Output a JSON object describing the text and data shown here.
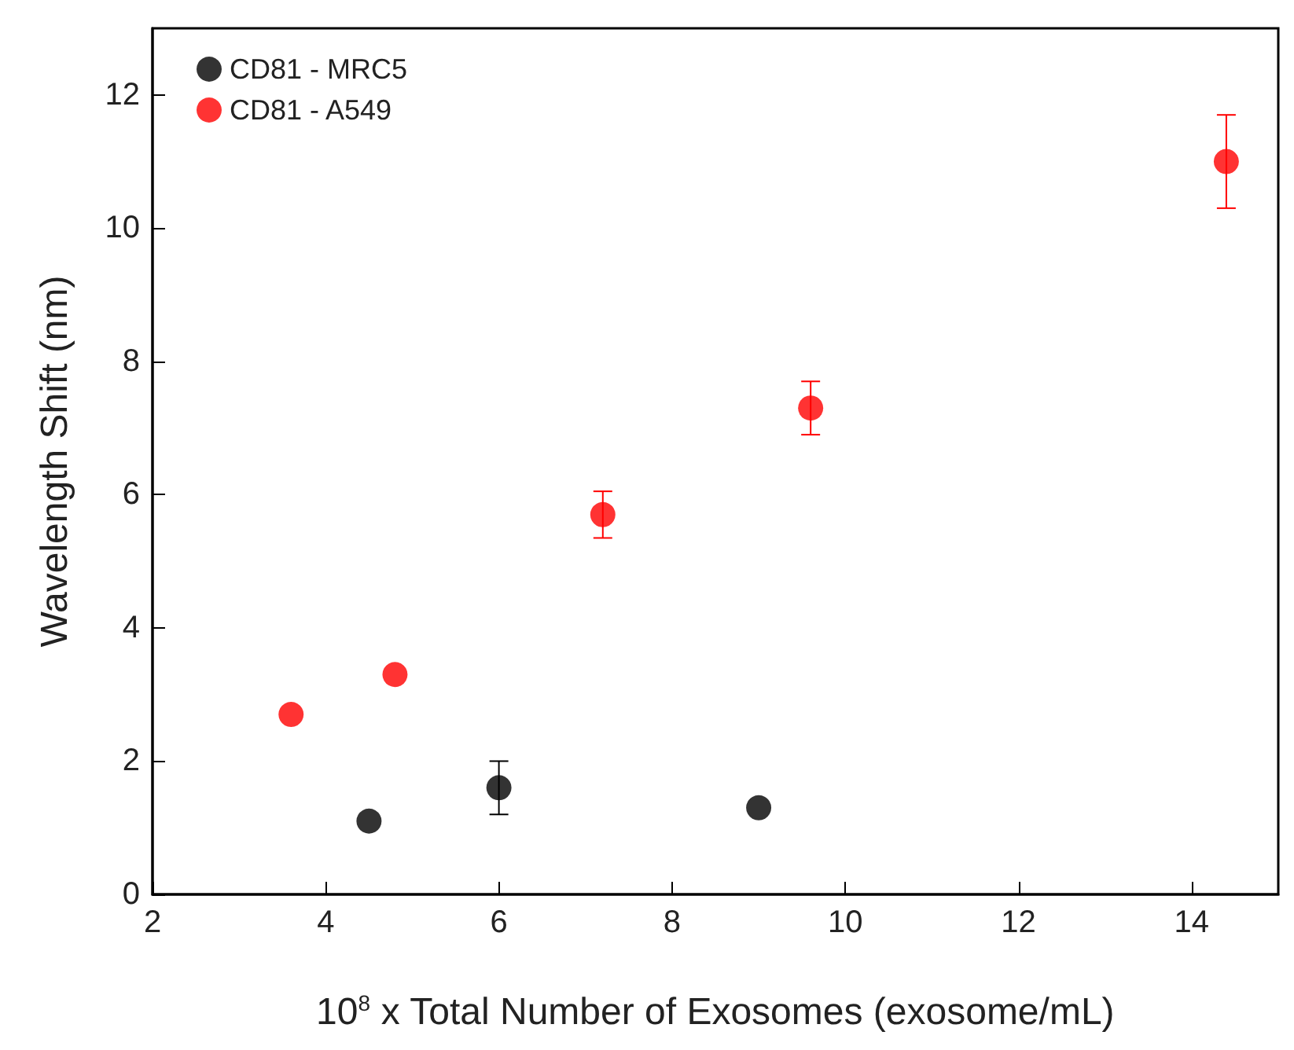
{
  "chart_data": {
    "type": "scatter",
    "xlabel": "10$^{8}$ x Total Number of Exosomes (exosome/mL)",
    "ylabel": "Wavelength Shift (nm)",
    "xlim": [
      2,
      15
    ],
    "xticks": [
      2,
      4,
      6,
      8,
      10,
      12,
      14
    ],
    "ylim": [
      0,
      13
    ],
    "yticks": [
      0,
      2,
      4,
      6,
      8,
      10,
      12
    ],
    "grid": false,
    "legend": "top left",
    "marker": "circle",
    "series": [
      {
        "name": "CD81 - MRC5",
        "color": "#000000",
        "x": [
          4.5,
          6,
          9
        ],
        "values": [
          1.1,
          1.6,
          1.3
        ],
        "errors": [
          null,
          0.4,
          null
        ]
      },
      {
        "name": "CD81 - A549",
        "color": "#ff0000",
        "x": [
          3.6,
          4.8,
          7.2,
          9.6,
          14.4
        ],
        "values": [
          2.7,
          3.3,
          5.7,
          7.3,
          11.0
        ],
        "errors": [
          null,
          null,
          0.35,
          0.4,
          0.7
        ]
      }
    ]
  }
}
